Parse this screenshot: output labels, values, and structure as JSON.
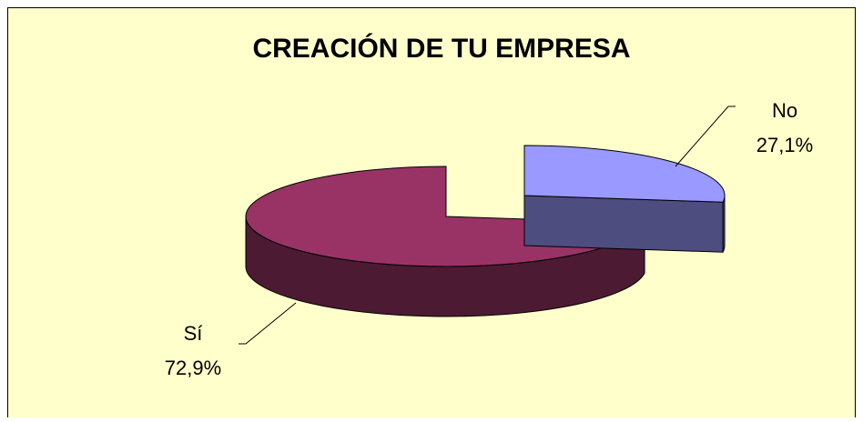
{
  "chart_data": {
    "type": "pie",
    "title": "CREACIÓN DE TU EMPRESA",
    "categories": [
      "No",
      "Sí"
    ],
    "values": [
      27.1,
      72.9
    ],
    "value_labels": [
      "27,1%",
      "72,9%"
    ],
    "colors": [
      "#9999ff",
      "#993366"
    ],
    "three_d": true,
    "exploded": [
      true,
      false
    ]
  }
}
